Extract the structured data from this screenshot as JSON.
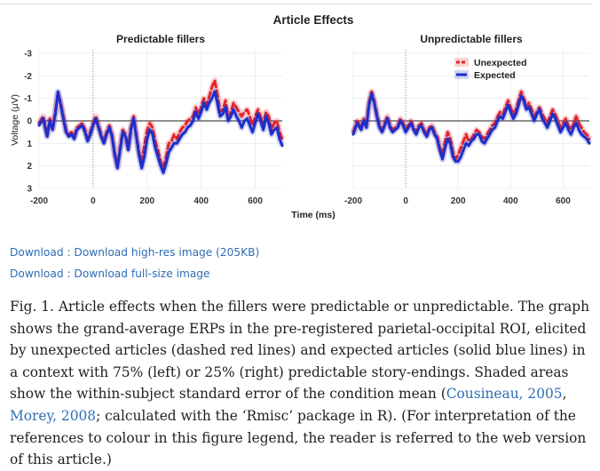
{
  "figure": {
    "title": "Article Effects",
    "y_axis_label": "Voltage (μV)",
    "x_axis_label": "Time (ms)"
  },
  "chart_data": [
    {
      "type": "line",
      "title": "Predictable fillers",
      "xlabel": "Time (ms)",
      "ylabel": "Voltage (μV)",
      "xlim": [
        -200,
        700
      ],
      "ylim": [
        -3,
        3
      ],
      "y_inverted": true,
      "x_ticks": [
        "-200",
        "0",
        "200",
        "400",
        "600"
      ],
      "y_ticks": [
        "-3",
        "-2",
        "-1",
        "0",
        "1",
        "2",
        "3"
      ],
      "grid": true,
      "series": [
        {
          "name": "Unexpected",
          "style": "dashed",
          "color": "#e8232a",
          "shaded_se": true,
          "x": [
            -200,
            -185,
            -170,
            -160,
            -150,
            -140,
            -130,
            -120,
            -110,
            -100,
            -90,
            -80,
            -70,
            -60,
            -50,
            -40,
            -30,
            -20,
            -10,
            0,
            10,
            20,
            30,
            40,
            50,
            60,
            70,
            80,
            90,
            100,
            110,
            120,
            130,
            140,
            150,
            160,
            170,
            180,
            190,
            200,
            210,
            220,
            230,
            240,
            250,
            260,
            270,
            280,
            290,
            300,
            310,
            320,
            330,
            340,
            350,
            360,
            370,
            380,
            390,
            400,
            410,
            420,
            430,
            440,
            450,
            460,
            470,
            480,
            490,
            500,
            510,
            520,
            530,
            540,
            550,
            560,
            570,
            580,
            590,
            600,
            610,
            620,
            630,
            640,
            650,
            660,
            670,
            680,
            690,
            700
          ],
          "y": [
            0.1,
            -0.2,
            0.6,
            -0.1,
            0.3,
            -0.4,
            -1.2,
            -0.8,
            -0.2,
            0.4,
            0.6,
            0.5,
            0.7,
            0.3,
            0.2,
            0.1,
            0.4,
            0.8,
            0.5,
            0.1,
            -0.2,
            0.2,
            0.6,
            0.9,
            0.5,
            0.2,
            0.6,
            1.4,
            2.0,
            1.2,
            0.4,
            0.6,
            1.2,
            0.3,
            -0.2,
            0.6,
            1.4,
            1.8,
            1.1,
            0.4,
            0.1,
            0.3,
            0.9,
            1.3,
            1.8,
            2.1,
            1.6,
            1.0,
            0.9,
            0.6,
            0.8,
            0.5,
            0.3,
            0.2,
            0.0,
            -0.1,
            -0.2,
            -0.6,
            -0.3,
            -0.6,
            -1.0,
            -0.7,
            -1.1,
            -1.5,
            -1.8,
            -1.2,
            -0.4,
            -0.5,
            -0.9,
            -0.2,
            -0.4,
            -0.8,
            -0.6,
            -0.4,
            -0.2,
            -0.4,
            -0.5,
            -0.2,
            0.2,
            -0.2,
            -0.5,
            -0.2,
            0.2,
            -0.4,
            -0.2,
            0.4,
            0.1,
            0.0,
            0.5,
            0.8
          ]
        },
        {
          "name": "Expected",
          "style": "solid",
          "color": "#1c2ecb",
          "shaded_se": true,
          "x": [
            -200,
            -185,
            -170,
            -160,
            -150,
            -140,
            -130,
            -120,
            -110,
            -100,
            -90,
            -80,
            -70,
            -60,
            -50,
            -40,
            -30,
            -20,
            -10,
            0,
            10,
            20,
            30,
            40,
            50,
            60,
            70,
            80,
            90,
            100,
            110,
            120,
            130,
            140,
            150,
            160,
            170,
            180,
            190,
            200,
            210,
            220,
            230,
            240,
            250,
            260,
            270,
            280,
            290,
            300,
            310,
            320,
            330,
            340,
            350,
            360,
            370,
            380,
            390,
            400,
            410,
            420,
            430,
            440,
            450,
            460,
            470,
            480,
            490,
            500,
            510,
            520,
            530,
            540,
            550,
            560,
            570,
            580,
            590,
            600,
            610,
            620,
            630,
            640,
            650,
            660,
            670,
            680,
            690,
            700
          ],
          "y": [
            0.2,
            -0.1,
            0.7,
            0.0,
            0.4,
            -0.3,
            -1.3,
            -0.7,
            -0.1,
            0.5,
            0.7,
            0.6,
            0.8,
            0.4,
            0.3,
            0.2,
            0.5,
            0.9,
            0.6,
            0.2,
            -0.1,
            0.3,
            0.7,
            1.0,
            0.6,
            0.3,
            0.7,
            1.5,
            2.1,
            1.3,
            0.5,
            0.7,
            1.3,
            0.4,
            -0.1,
            0.7,
            1.5,
            2.1,
            1.6,
            0.8,
            0.4,
            0.6,
            1.2,
            1.6,
            2.0,
            2.3,
            1.9,
            1.4,
            1.2,
            1.0,
            1.0,
            0.8,
            0.6,
            0.5,
            0.3,
            0.2,
            0.0,
            -0.4,
            -0.1,
            -0.4,
            -0.8,
            -0.5,
            -0.8,
            -1.0,
            -1.3,
            -0.8,
            -0.2,
            -0.3,
            -0.6,
            0.0,
            -0.2,
            -0.5,
            -0.2,
            0.0,
            0.3,
            0.0,
            -0.1,
            0.2,
            0.5,
            0.1,
            -0.3,
            0.0,
            0.4,
            -0.2,
            0.1,
            0.6,
            0.4,
            0.3,
            0.8,
            1.1
          ]
        }
      ]
    },
    {
      "type": "line",
      "title": "Unpredictable fillers",
      "xlabel": "Time (ms)",
      "ylabel": "Voltage (μV)",
      "xlim": [
        -200,
        700
      ],
      "ylim": [
        -3,
        3
      ],
      "y_inverted": true,
      "x_ticks": [
        "-200",
        "0",
        "200",
        "400",
        "600"
      ],
      "grid": true,
      "legend": {
        "placement": "top-right",
        "entries": [
          "Unexpected",
          "Expected"
        ]
      },
      "series": [
        {
          "name": "Unexpected",
          "style": "dashed",
          "color": "#e8232a",
          "shaded_se": true,
          "x": [
            -200,
            -185,
            -170,
            -160,
            -150,
            -140,
            -130,
            -120,
            -110,
            -100,
            -90,
            -80,
            -70,
            -60,
            -50,
            -40,
            -30,
            -20,
            -10,
            0,
            10,
            20,
            30,
            40,
            50,
            60,
            70,
            80,
            90,
            100,
            110,
            120,
            130,
            140,
            150,
            160,
            170,
            180,
            190,
            200,
            210,
            220,
            230,
            240,
            250,
            260,
            270,
            280,
            290,
            300,
            310,
            320,
            330,
            340,
            350,
            360,
            370,
            380,
            390,
            400,
            410,
            420,
            430,
            440,
            450,
            460,
            470,
            480,
            490,
            500,
            510,
            520,
            530,
            540,
            550,
            560,
            570,
            580,
            590,
            600,
            610,
            620,
            630,
            640,
            650,
            660,
            670,
            680,
            690,
            700
          ],
          "y": [
            0.5,
            0.0,
            0.3,
            -0.1,
            0.2,
            -0.8,
            -1.3,
            -0.9,
            -0.3,
            0.2,
            0.4,
            0.1,
            -0.2,
            0.2,
            0.4,
            0.3,
            0.2,
            -0.1,
            0.1,
            0.4,
            0.2,
            0.0,
            0.3,
            0.5,
            0.2,
            0.1,
            0.4,
            0.6,
            0.3,
            0.2,
            0.5,
            0.7,
            1.2,
            1.5,
            0.9,
            0.5,
            0.8,
            1.4,
            1.7,
            1.5,
            1.2,
            0.9,
            0.6,
            0.9,
            0.8,
            0.6,
            0.4,
            0.5,
            0.7,
            0.8,
            0.6,
            0.4,
            0.2,
            0.1,
            -0.2,
            -0.4,
            -0.3,
            -0.6,
            -0.9,
            -0.6,
            -0.3,
            -0.5,
            -0.9,
            -1.3,
            -1.0,
            -0.6,
            -0.8,
            -0.5,
            -0.2,
            -0.4,
            -0.6,
            -0.3,
            -0.1,
            0.1,
            -0.2,
            -0.5,
            -0.3,
            0.0,
            0.3,
            0.1,
            -0.1,
            0.2,
            0.4,
            0.1,
            -0.2,
            0.1,
            0.3,
            0.5,
            0.6,
            0.8
          ]
        },
        {
          "name": "Expected",
          "style": "solid",
          "color": "#1c2ecb",
          "shaded_se": true,
          "x": [
            -200,
            -185,
            -170,
            -160,
            -150,
            -140,
            -130,
            -120,
            -110,
            -100,
            -90,
            -80,
            -70,
            -60,
            -50,
            -40,
            -30,
            -20,
            -10,
            0,
            10,
            20,
            30,
            40,
            50,
            60,
            70,
            80,
            90,
            100,
            110,
            120,
            130,
            140,
            150,
            160,
            170,
            180,
            190,
            200,
            210,
            220,
            230,
            240,
            250,
            260,
            270,
            280,
            290,
            300,
            310,
            320,
            330,
            340,
            350,
            360,
            370,
            380,
            390,
            400,
            410,
            420,
            430,
            440,
            450,
            460,
            470,
            480,
            490,
            500,
            510,
            520,
            530,
            540,
            550,
            560,
            570,
            580,
            590,
            600,
            610,
            620,
            630,
            640,
            650,
            660,
            670,
            680,
            690,
            700
          ],
          "y": [
            0.6,
            0.1,
            0.4,
            0.0,
            0.3,
            -0.7,
            -1.2,
            -0.8,
            -0.2,
            0.3,
            0.5,
            0.2,
            -0.1,
            0.3,
            0.5,
            0.4,
            0.3,
            0.0,
            0.2,
            0.5,
            0.3,
            0.1,
            0.4,
            0.6,
            0.3,
            0.2,
            0.5,
            0.7,
            0.4,
            0.3,
            0.6,
            0.8,
            1.3,
            1.7,
            1.2,
            0.8,
            1.0,
            1.6,
            1.8,
            1.8,
            1.6,
            1.3,
            1.0,
            1.1,
            0.9,
            0.8,
            0.6,
            0.6,
            0.9,
            1.0,
            0.8,
            0.6,
            0.4,
            0.3,
            0.0,
            -0.2,
            -0.1,
            -0.4,
            -0.7,
            -0.4,
            -0.1,
            -0.3,
            -0.7,
            -1.1,
            -0.9,
            -0.5,
            -0.6,
            -0.3,
            0.0,
            -0.3,
            -0.5,
            -0.1,
            0.1,
            0.3,
            0.0,
            -0.3,
            -0.1,
            0.2,
            0.5,
            0.3,
            0.1,
            0.4,
            0.6,
            0.3,
            0.1,
            0.4,
            0.6,
            0.7,
            0.8,
            1.0
          ]
        }
      ]
    }
  ],
  "links": {
    "highres": "Download : Download high-res image (205KB)",
    "fullsize": "Download : Download full-size image"
  },
  "caption": {
    "before": "Fig. 1. Article effects when the fillers were predictable or unpredictable. The graph shows the grand-average ERPs in the pre-registered parietal-occipital ROI, elicited by unexpected articles (dashed red lines) and expected articles (solid blue lines) in a context with 75% (left) or 25% (right) predictable story-endings. Shaded areas show the within-subject standard error of the condition mean (",
    "ref1": "Cousineau, 2005",
    "sep": ", ",
    "ref2": "Morey, 2008",
    "after": "; calculated with the ‘Rmisc’ package in R). (For interpretation of the references to colour in this figure legend, the reader is referred to the web version of this article.)"
  }
}
